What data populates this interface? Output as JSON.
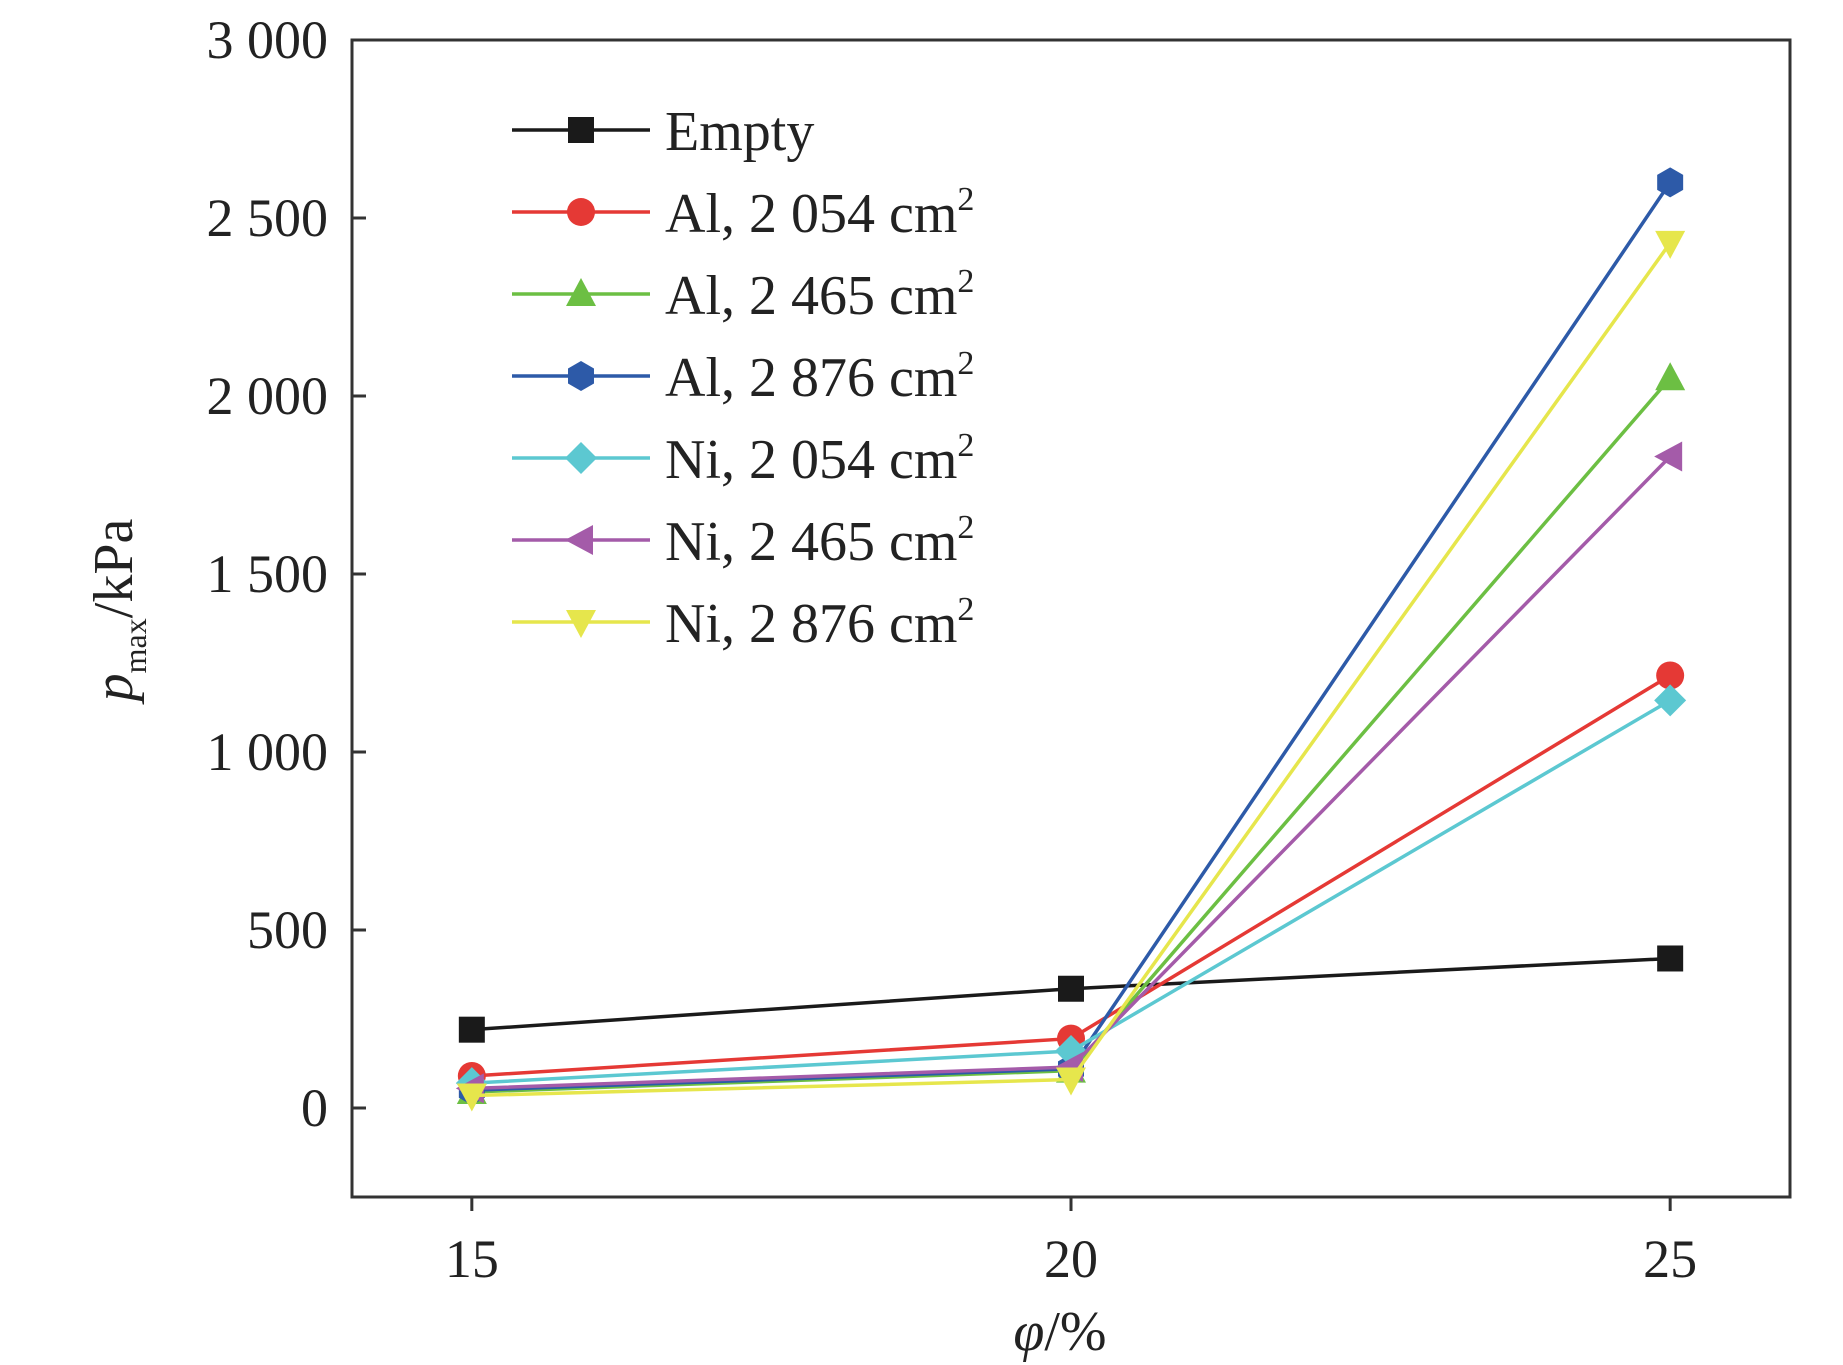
{
  "chart_data": {
    "type": "line",
    "x": [
      15,
      20,
      25
    ],
    "xlim": [
      14,
      26
    ],
    "ylim": [
      -250,
      3000
    ],
    "xticks": [
      15,
      20,
      25
    ],
    "xtick_labels": [
      "15",
      "20",
      "25"
    ],
    "yticks": [
      0,
      500,
      1000,
      1500,
      2000,
      2500,
      3000
    ],
    "ytick_labels": [
      "0",
      "500",
      "1 000",
      "1 500",
      "2 000",
      "2 500",
      "3 000"
    ],
    "xlabel": {
      "symbol": "φ",
      "unit": "/%"
    },
    "ylabel": {
      "symbol": "p",
      "subscript": "max",
      "unit": "/kPa"
    },
    "legend_position": "top-left",
    "series": [
      {
        "name": "Empty",
        "name_main": "Empty",
        "name_sup": "",
        "color": "#1a1a1a",
        "marker": "square",
        "values": [
          220,
          335,
          420
        ]
      },
      {
        "name": "Al, 2 054 cm2",
        "name_main": "Al, 2 054 cm",
        "name_sup": "2",
        "color": "#e53935",
        "marker": "circle",
        "values": [
          90,
          195,
          1215
        ]
      },
      {
        "name": "Al, 2 465 cm2",
        "name_main": "Al, 2 465 cm",
        "name_sup": "2",
        "color": "#6cbf43",
        "marker": "triangle-up",
        "values": [
          45,
          105,
          2050
        ]
      },
      {
        "name": "Al, 2 876 cm2",
        "name_main": "Al, 2 876 cm",
        "name_sup": "2",
        "color": "#2d5aa8",
        "marker": "hexagon",
        "values": [
          50,
          110,
          2600
        ]
      },
      {
        "name": "Ni, 2 054 cm2",
        "name_main": "Ni, 2 054 cm",
        "name_sup": "2",
        "color": "#5cc8d1",
        "marker": "diamond",
        "values": [
          70,
          160,
          1145
        ]
      },
      {
        "name": "Ni, 2 465 cm2",
        "name_main": "Ni, 2 465 cm",
        "name_sup": "2",
        "color": "#a45ba9",
        "marker": "triangle-left",
        "values": [
          55,
          115,
          1830
        ]
      },
      {
        "name": "Ni, 2 876 cm2",
        "name_main": "Ni, 2 876 cm",
        "name_sup": "2",
        "color": "#e6e64c",
        "marker": "triangle-down",
        "values": [
          35,
          80,
          2430
        ]
      }
    ]
  }
}
